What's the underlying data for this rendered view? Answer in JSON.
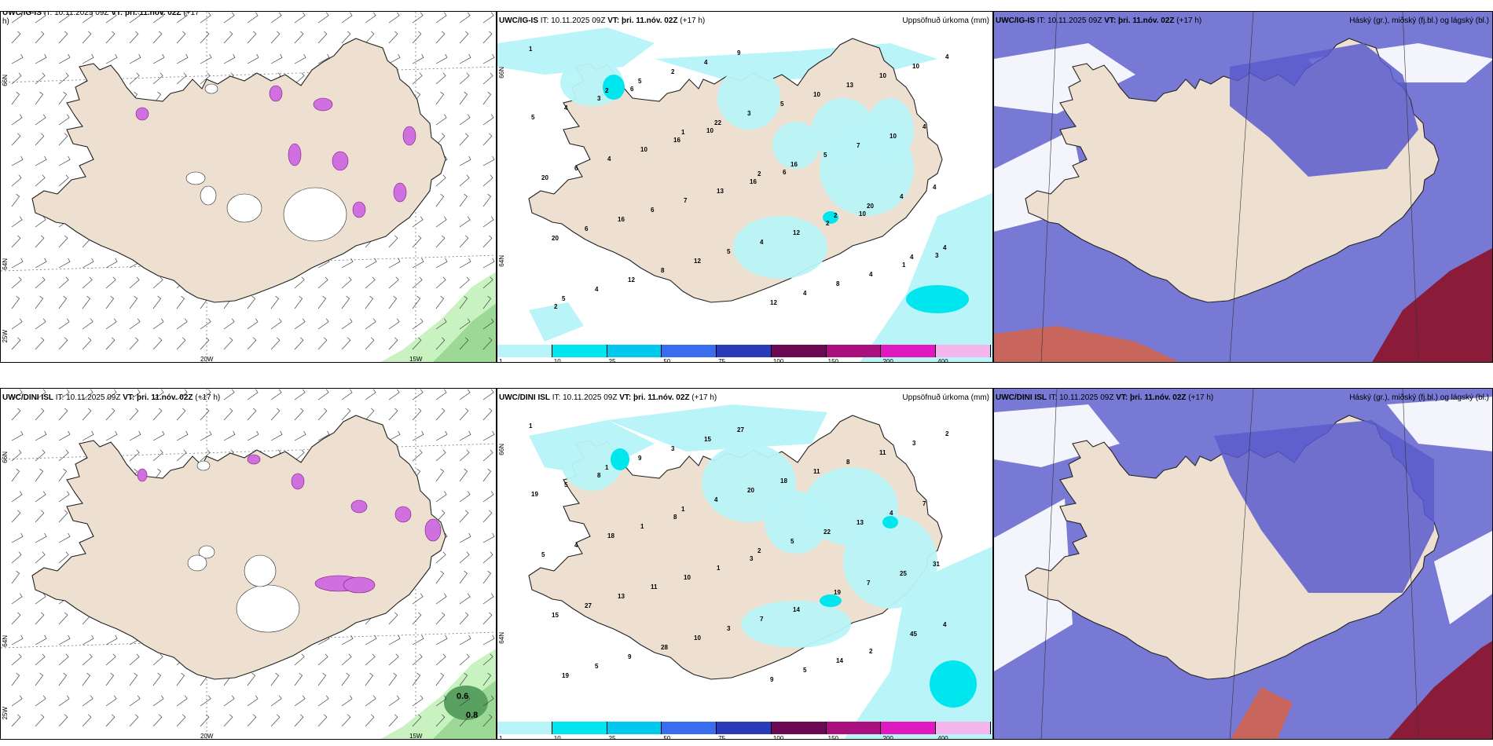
{
  "colors": {
    "land": "#eee0d1",
    "coast": "#222222",
    "precip_1": "#b8f4f8",
    "precip_10": "#00e6ee",
    "precip_25": "#00c8ee",
    "precip_50": "#3a6cf0",
    "precip_75": "#2a3ab8",
    "precip_100": "#6a0a52",
    "precip_150": "#a8107e",
    "precip_200": "#e018c0",
    "precip_400": "#f4b4ec",
    "cloud_high": "#5a5acc",
    "cloud_low": "#8a1c3a",
    "cloud_mid": "#c8655c",
    "wind_green_light": "#c8f2c0",
    "wind_green_mid": "#9cd896",
    "wind_green_dark": "#5aa060",
    "snow_magenta": "#d070e0"
  },
  "panels": {
    "ig_wind": {
      "model": "UWC/IG-IS",
      "it": "IT: 10.11.2025 09Z",
      "vt_label": "VT:",
      "vt_value": "þri. 11.nóv. 02Z",
      "lead": "(+17",
      "lead_cont": "h)",
      "lon_labels": [
        "20W",
        "15W"
      ],
      "lat_labels": [
        "66N",
        "64N",
        "25W"
      ]
    },
    "ig_precip": {
      "model": "UWC/IG-IS",
      "it": "IT: 10.11.2025 09Z",
      "vt_label": "VT:",
      "vt_value": "þri. 11.nóv. 02Z",
      "lead": "(+17 h)",
      "right_title": "Uppsöfnuð úrkoma (mm)",
      "lat_labels": [
        "66N",
        "64N"
      ],
      "values": [
        "1",
        "2",
        "1",
        "2",
        "2",
        "4",
        "5",
        "5",
        "22",
        "16",
        "20",
        "4",
        "4",
        "2",
        "3",
        "5",
        "4",
        "20",
        "12",
        "4",
        "5",
        "7",
        "4",
        "6",
        "8",
        "9",
        "10",
        "10",
        "20",
        "16",
        "12",
        "12",
        "13",
        "4",
        "6",
        "6",
        "5",
        "4",
        "10",
        "5",
        "4",
        "7",
        "4",
        "8",
        "10",
        "4",
        "10",
        "13",
        "12",
        "4",
        "4",
        "3",
        "16",
        "16",
        "2",
        "1",
        "2",
        "6",
        "10",
        "6",
        "10",
        "3"
      ]
    },
    "ig_cloud": {
      "model": "UWC/IG-IS",
      "it": "IT: 10.11.2025 09Z",
      "vt_label": "VT:",
      "vt_value": "þri. 11.nóv. 02Z",
      "lead": "(+17 h)",
      "right_title": "Háský (gr.), miðský (fj.bl.) og lágský (bl.)"
    },
    "dini_wind": {
      "model": "UWC/DINI ISL",
      "it": "IT: 10.11.2025 09Z",
      "vt_label": "VT:",
      "vt_value": "þri. 11.nóv. 02Z",
      "lead": "(+17 h)",
      "lon_labels": [
        "20W",
        "15W"
      ],
      "lat_labels": [
        "66N",
        "64N",
        "25W"
      ],
      "wind_values": [
        "0.6",
        "0.8"
      ]
    },
    "dini_precip": {
      "model": "UWC/DINI ISL",
      "it": "IT: 10.11.2025 09Z",
      "vt_label": "VT:",
      "vt_value": "þri. 11.nóv. 02Z",
      "lead": "(+17 h)",
      "right_title": "Uppsöfnuð úrkoma (mm)",
      "lat_labels": [
        "66N",
        "64N"
      ],
      "values": [
        "1",
        "1",
        "1",
        "2",
        "19",
        "45",
        "19",
        "9",
        "4",
        "5",
        "7",
        "4",
        "5",
        "3",
        "20",
        "22",
        "25",
        "15",
        "9",
        "15",
        "18",
        "13",
        "31",
        "27",
        "28",
        "27",
        "11",
        "4",
        "5",
        "13",
        "10",
        "9",
        "8",
        "7",
        "4",
        "11",
        "3",
        "5",
        "11",
        "19",
        "18",
        "10",
        "7",
        "14",
        "3",
        "5",
        "1",
        "1",
        "14",
        "2",
        "2",
        "8",
        "8",
        "3"
      ]
    },
    "dini_cloud": {
      "model": "UWC/DINI ISL",
      "it": "IT: 10.11.2025 09Z",
      "vt_label": "VT:",
      "vt_value": "þri. 11.nóv. 02Z",
      "lead": "(+17 h)",
      "right_title": "Háský (gr.), miðský (fj.bl.) og lágský (bl.)"
    }
  },
  "colorbar": {
    "ticks": [
      "1",
      "10",
      "25",
      "50",
      "75",
      "100",
      "150",
      "200",
      "400"
    ]
  }
}
